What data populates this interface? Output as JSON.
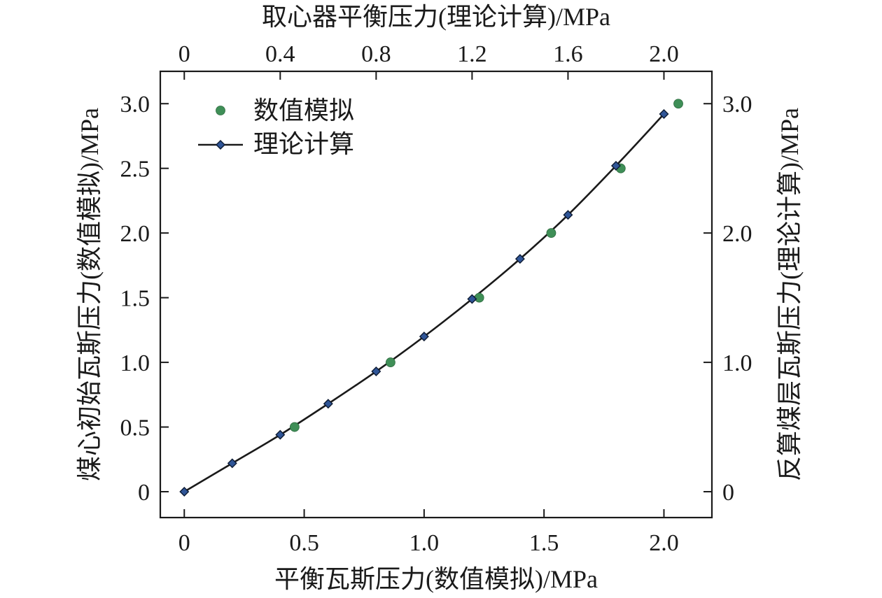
{
  "chart_data": {
    "type": "line",
    "x_bottom": {
      "label": "平衡瓦斯压力(数值模拟)/MPa",
      "range": [
        -0.1,
        2.2
      ],
      "ticks": [
        0,
        0.5,
        1.0,
        1.5,
        2.0
      ],
      "tick_labels": [
        "0",
        "0.5",
        "1.0",
        "1.5",
        "2.0"
      ]
    },
    "x_top": {
      "label": "取心器平衡压力(理论计算)/MPa",
      "ticks": [
        0,
        0.4,
        0.8,
        1.2,
        1.6,
        2.0
      ],
      "tick_labels": [
        "0",
        "0.4",
        "0.8",
        "1.2",
        "1.6",
        "2.0"
      ]
    },
    "y_left": {
      "label": "煤心初始瓦斯压力(数值模拟)/MPa",
      "range": [
        -0.2,
        3.25
      ],
      "ticks": [
        0,
        0.5,
        1.0,
        1.5,
        2.0,
        2.5,
        3.0
      ],
      "tick_labels": [
        "0",
        "0.5",
        "1.0",
        "1.5",
        "2.0",
        "2.5",
        "3.0"
      ]
    },
    "y_right": {
      "label": "反算煤层瓦斯压力(理论计算)/MPa",
      "ticks": [
        0,
        1.0,
        2.0,
        3.0
      ],
      "tick_labels": [
        "0",
        "1.0",
        "2.0",
        "3.0"
      ]
    },
    "legend_position": "top-left",
    "series": [
      {
        "name": "数值模拟",
        "kind": "scatter",
        "color": "#3f8f57",
        "x": [
          0.46,
          0.86,
          1.23,
          1.53,
          1.82,
          2.06
        ],
        "y": [
          0.5,
          1.0,
          1.5,
          2.0,
          2.5,
          3.0
        ]
      },
      {
        "name": "理论计算",
        "kind": "line-marker",
        "color": "#1a1a1a",
        "marker_color": "#2f5597",
        "x": [
          0,
          0.2,
          0.4,
          0.6,
          0.8,
          1.0,
          1.2,
          1.4,
          1.6,
          1.8,
          2.0
        ],
        "y": [
          0,
          0.22,
          0.44,
          0.68,
          0.93,
          1.2,
          1.49,
          1.8,
          2.14,
          2.52,
          2.92
        ]
      }
    ]
  }
}
